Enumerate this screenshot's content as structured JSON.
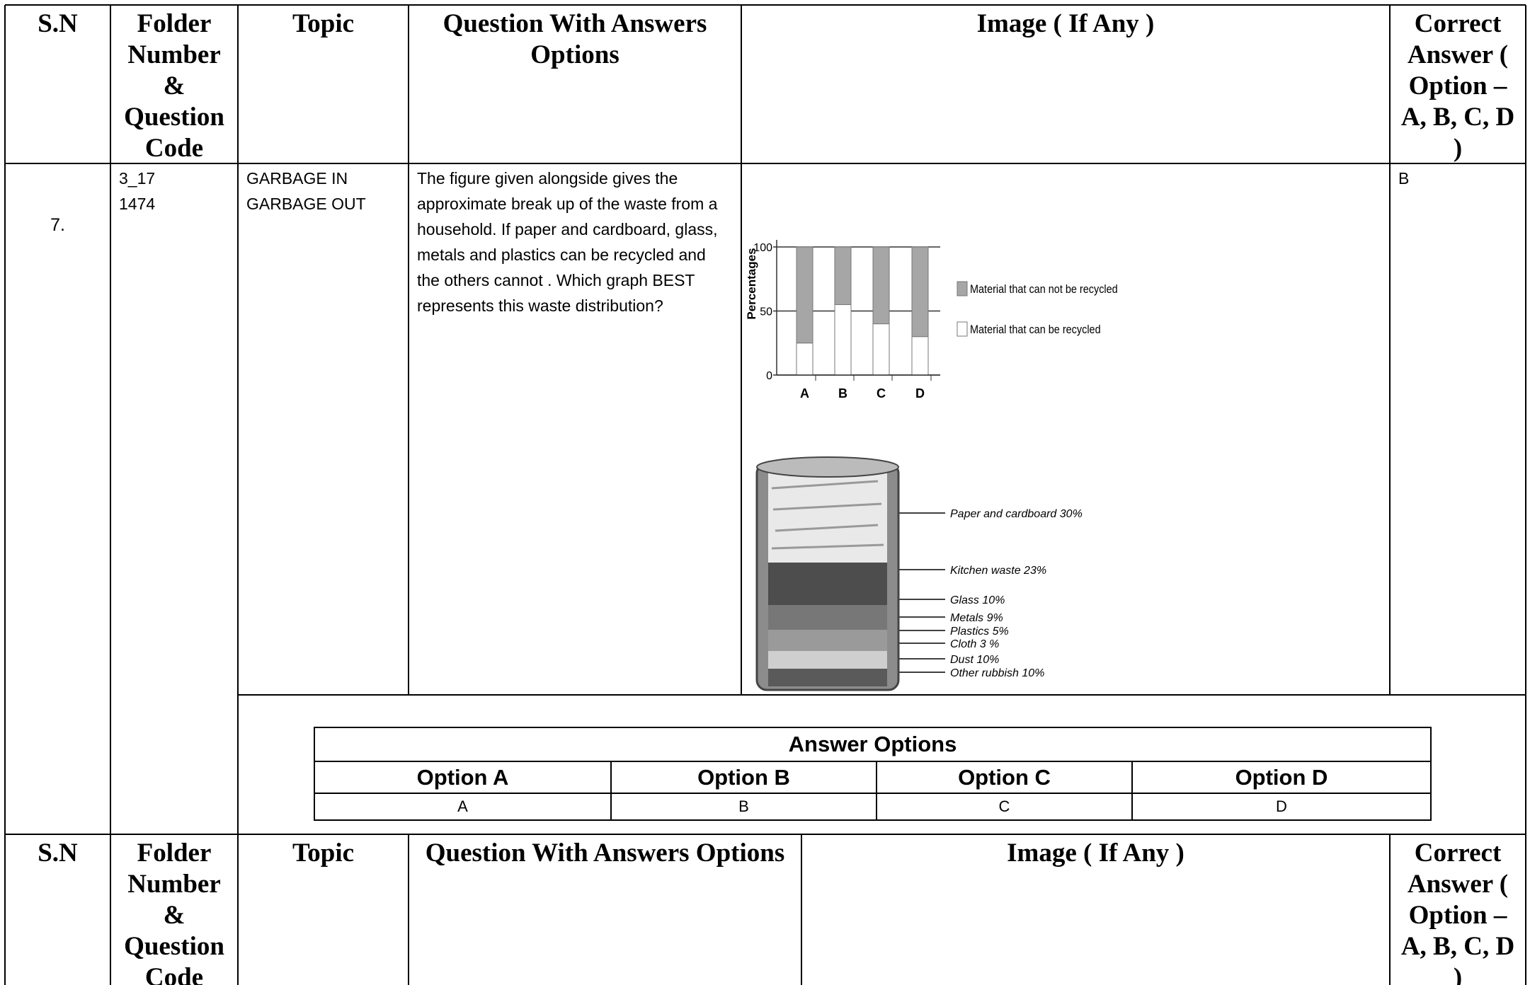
{
  "header": {
    "columns": [
      "S.N",
      "Folder Number & Question Code",
      "Topic",
      "Question With Answers Options",
      "Image ( If Any )",
      "Correct Answer ( Option – A, B, C, D )"
    ]
  },
  "row": {
    "sn": "7.",
    "folder": "3_17",
    "code": "1474",
    "topic": [
      "GARBAGE IN",
      "GARBAGE OUT"
    ],
    "question": "The figure given alongside gives the approximate break up of the waste from a household. If paper and cardboard, glass, metals and plastics can be recycled and the others cannot . Which graph BEST represents this waste distribution?",
    "correct": "B"
  },
  "figure": {
    "chart": {
      "type": "bar",
      "y_label": "Percentages",
      "categories": [
        "A",
        "B",
        "C",
        "D"
      ],
      "series": [
        {
          "name": "Material that can be recycled",
          "color": "#ffffff",
          "values": [
            25,
            55,
            40,
            30
          ]
        },
        {
          "name": "Material that can not be recycled",
          "color": "#a6a6a6",
          "values": [
            75,
            45,
            60,
            70
          ]
        }
      ],
      "ylim": [
        0,
        100
      ],
      "yticks": [
        0,
        50,
        100
      ]
    },
    "bin_labels": [
      "Paper and cardboard 30%",
      "Kitchen waste 23%",
      "Glass 10%",
      "Metals 9%",
      "Plastics 5%",
      "Cloth 3 %",
      "Dust 10%",
      "Other rubbish 10%"
    ]
  },
  "answer_options": {
    "title": "Answer Options",
    "headers": [
      "Option A",
      "Option B",
      "Option C",
      "Option D"
    ],
    "values": [
      "A",
      "B",
      "C",
      "D"
    ]
  },
  "header_repeat": {
    "columns": [
      "S.N",
      "Folder Number & Question Code",
      "Topic",
      "Question With Answers Options",
      "Image ( If Any )",
      "Correct Answer ( Option – A, B, C, D )"
    ]
  }
}
